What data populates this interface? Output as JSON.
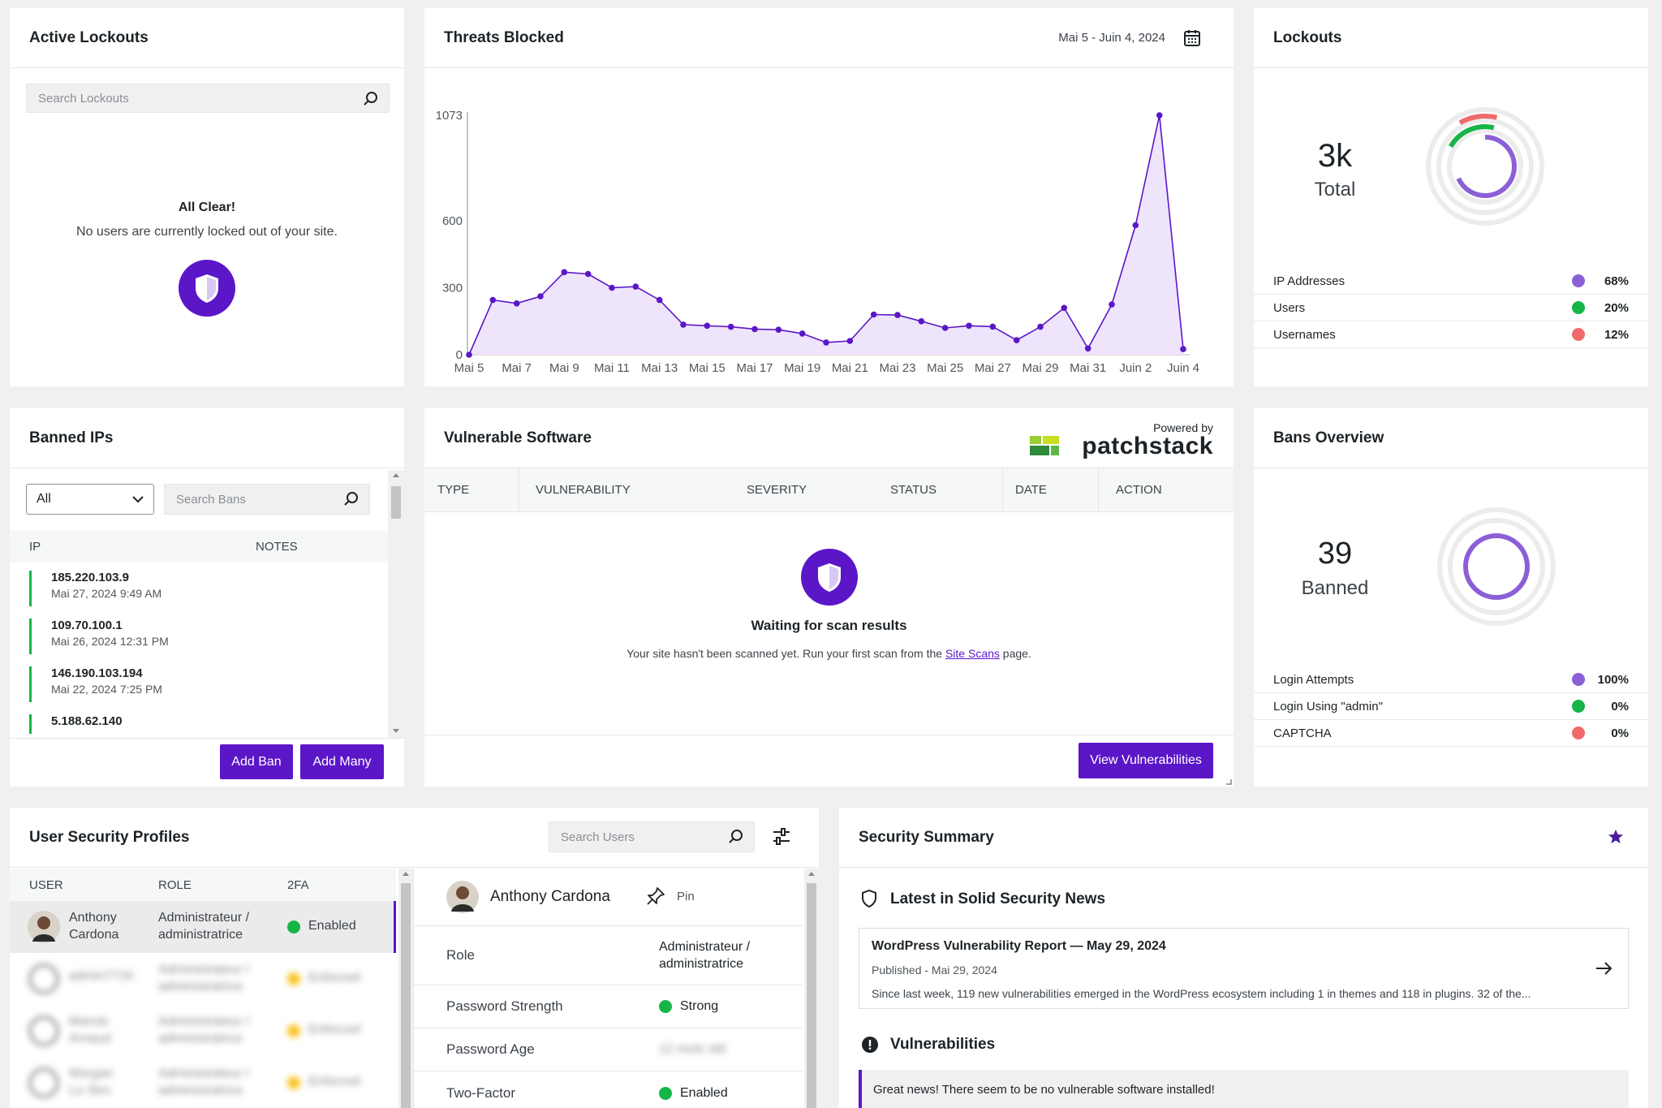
{
  "active_lockouts": {
    "title": "Active Lockouts",
    "search_placeholder": "Search Lockouts",
    "empty_title": "All Clear!",
    "empty_text": "No users are currently locked out of your site."
  },
  "threats": {
    "title": "Threats Blocked",
    "date_range": "Mai 5 - Juin 4, 2024"
  },
  "chart_data": {
    "type": "area",
    "title": "Threats Blocked",
    "x": [
      "Mai 5",
      "Mai 6",
      "Mai 7",
      "Mai 8",
      "Mai 9",
      "Mai 10",
      "Mai 11",
      "Mai 12",
      "Mai 13",
      "Mai 14",
      "Mai 15",
      "Mai 16",
      "Mai 17",
      "Mai 18",
      "Mai 19",
      "Mai 20",
      "Mai 21",
      "Mai 22",
      "Mai 23",
      "Mai 24",
      "Mai 25",
      "Mai 26",
      "Mai 27",
      "Mai 28",
      "Mai 29",
      "Mai 30",
      "Mai 31",
      "Juin 1",
      "Juin 2",
      "Juin 3",
      "Juin 4"
    ],
    "x_tick_labels": [
      "Mai 5",
      "Mai 7",
      "Mai 9",
      "Mai 11",
      "Mai 13",
      "Mai 15",
      "Mai 17",
      "Mai 19",
      "Mai 21",
      "Mai 23",
      "Mai 25",
      "Mai 27",
      "Mai 29",
      "Mai 31",
      "Juin 2",
      "Juin 4"
    ],
    "series": [
      {
        "values": [
          0,
          245,
          230,
          262,
          370,
          362,
          300,
          305,
          245,
          135,
          130,
          125,
          115,
          112,
          95,
          55,
          62,
          180,
          178,
          150,
          120,
          130,
          126,
          65,
          125,
          210,
          28,
          225,
          580,
          1073,
          25
        ]
      }
    ],
    "y_ticks": [
      0,
      300,
      600,
      1073
    ],
    "ylim": [
      0,
      1073
    ],
    "color": "#5b16c8",
    "fill": "#eee4fb"
  },
  "lockouts": {
    "title": "Lockouts",
    "total_value": "3k",
    "total_label": "Total",
    "legend": [
      {
        "label": "IP Addresses",
        "pct": "68%",
        "color": "#8b5fd6"
      },
      {
        "label": "Users",
        "pct": "20%",
        "color": "#16b548"
      },
      {
        "label": "Usernames",
        "pct": "12%",
        "color": "#f06a6a"
      }
    ]
  },
  "banned_ips": {
    "title": "Banned IPs",
    "filter_value": "All",
    "search_placeholder": "Search Bans",
    "col_ip": "IP",
    "col_notes": "NOTES",
    "items": [
      {
        "ip": "185.220.103.9",
        "date": "Mai 27, 2024 9:49 AM"
      },
      {
        "ip": "109.70.100.1",
        "date": "Mai 26, 2024 12:31 PM"
      },
      {
        "ip": "146.190.103.194",
        "date": "Mai 22, 2024 7:25 PM"
      },
      {
        "ip": "5.188.62.140",
        "date": ""
      }
    ],
    "add_ban": "Add Ban",
    "add_many": "Add Many"
  },
  "vulnerable": {
    "title": "Vulnerable Software",
    "powered_by": "Powered by",
    "brand": "patchstack",
    "columns": [
      "TYPE",
      "VULNERABILITY",
      "SEVERITY",
      "STATUS",
      "DATE",
      "ACTION"
    ],
    "waiting_title": "Waiting for scan results",
    "waiting_text_before": "Your site hasn't been scanned yet. Run your first scan from the",
    "waiting_link": "Site Scans",
    "waiting_text_after": "page.",
    "view_button": "View Vulnerabilities"
  },
  "bans_overview": {
    "title": "Bans Overview",
    "value": "39",
    "label": "Banned",
    "legend": [
      {
        "label": "Login Attempts",
        "pct": "100%",
        "color": "#8b5fd6"
      },
      {
        "label": "Login Using \"admin\"",
        "pct": "0%",
        "color": "#16b548"
      },
      {
        "label": "CAPTCHA",
        "pct": "0%",
        "color": "#f06a6a"
      }
    ]
  },
  "user_profiles": {
    "title": "User Security Profiles",
    "search_placeholder": "Search Users",
    "col_user": "USER",
    "col_role": "ROLE",
    "col_2fa": "2FA",
    "rows": [
      {
        "name_1": "Anthony",
        "name_2": "Cardona",
        "role_1": "Administrateur /",
        "role_2": "administratrice",
        "twofa": "Enabled",
        "status": "green"
      },
      {
        "name_1": "admin7716",
        "name_2": "",
        "role_1": "Administrateur /",
        "role_2": "administratrice",
        "twofa": "Enforced",
        "status": "yellow"
      },
      {
        "name_1": "Marnie",
        "name_2": "Arnaud",
        "role_1": "Administrateur /",
        "role_2": "administratrice",
        "twofa": "Enforced",
        "status": "yellow"
      },
      {
        "name_1": "Morgan",
        "name_2": "Le Stro",
        "role_1": "Administrateur /",
        "role_2": "administratrice",
        "twofa": "Enforced",
        "status": "yellow"
      }
    ],
    "detail": {
      "name": "Anthony Cardona",
      "pin": "Pin",
      "role_label": "Role",
      "role_value_1": "Administrateur /",
      "role_value_2": "administratrice",
      "pw_strength_label": "Password Strength",
      "pw_strength_value": "Strong",
      "pw_age_label": "Password Age",
      "pw_age_value": "12 mois old",
      "twofactor_label": "Two-Factor",
      "twofactor_value": "Enabled"
    }
  },
  "security_summary": {
    "title": "Security Summary",
    "news_heading": "Latest in Solid Security News",
    "news_title": "WordPress Vulnerability Report — May 29, 2024",
    "news_published": "Published - Mai 29, 2024",
    "news_excerpt": "Since last week, 119 new vulnerabilities emerged in the WordPress ecosystem including 1 in themes and 118 in plugins. 32 of the...",
    "vuln_heading": "Vulnerabilities",
    "vuln_message": "Great news! There seem to be no vulnerable software installed!"
  }
}
